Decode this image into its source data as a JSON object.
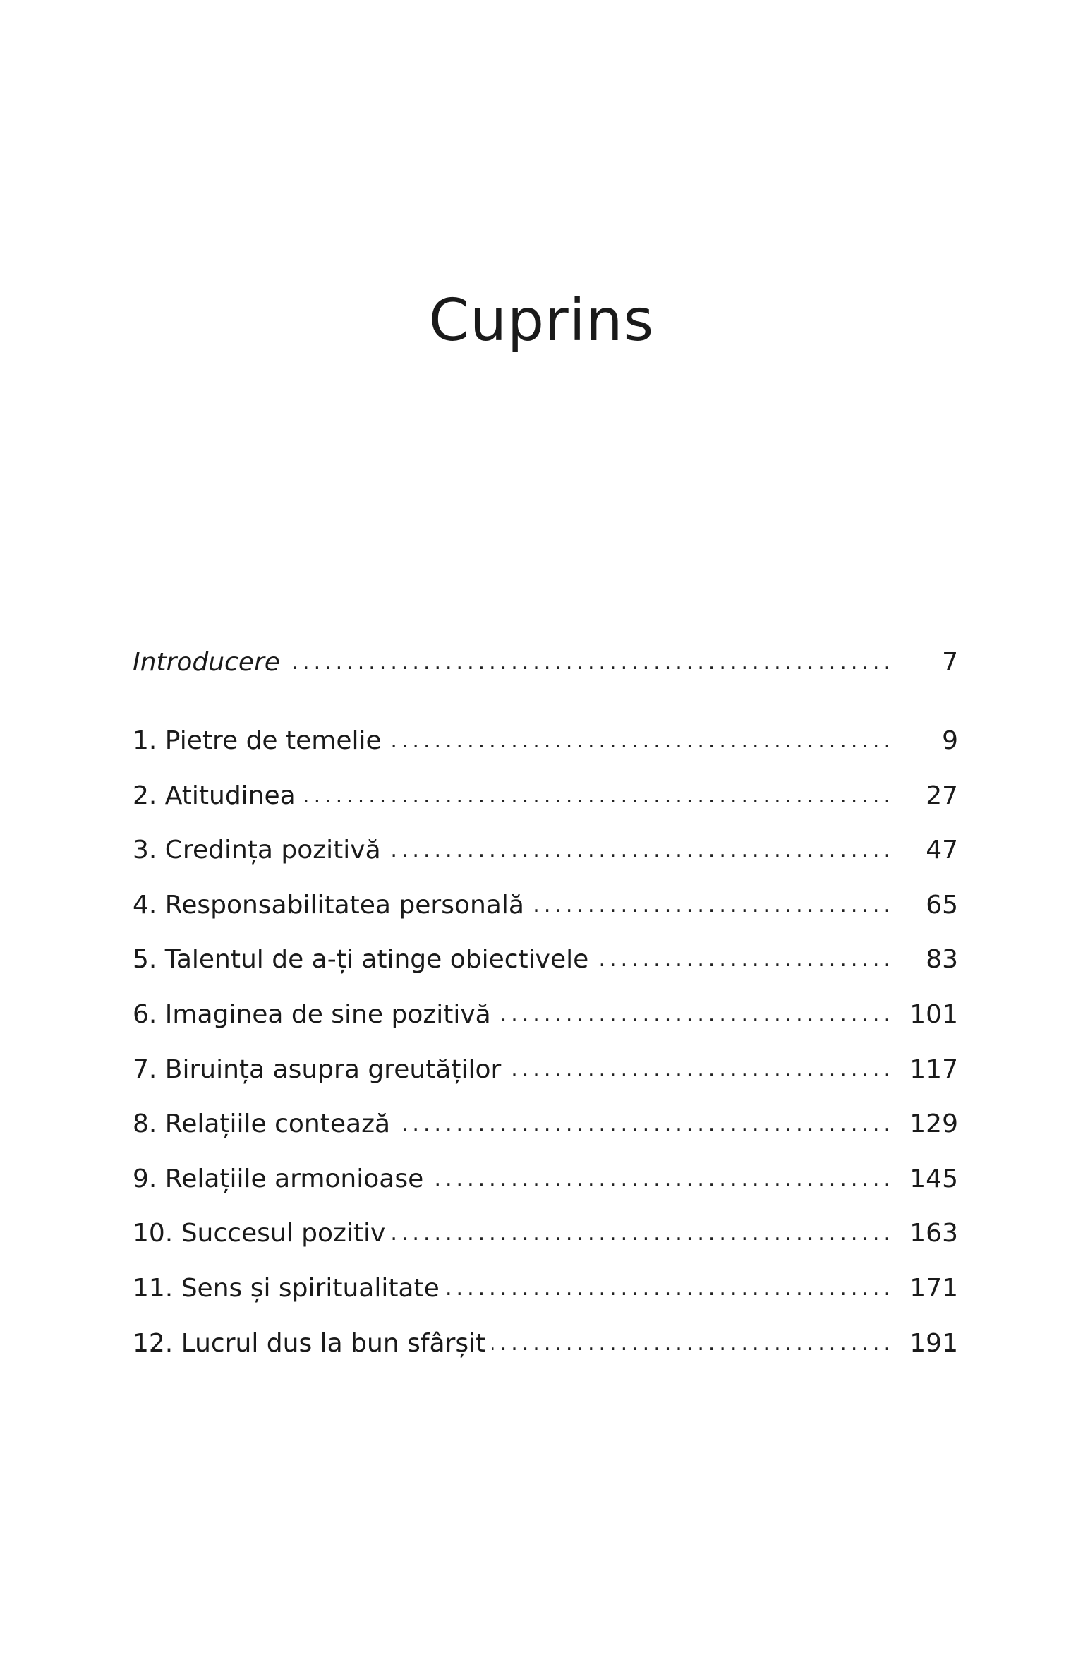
{
  "title": "Cuprins",
  "entries": [
    {
      "label": "Introducere",
      "page": "7",
      "italic": true
    },
    {
      "label": "1. Pietre de temelie",
      "page": "9"
    },
    {
      "label": "2. Atitudinea",
      "page": "27"
    },
    {
      "label": "3. Credința pozitivă",
      "page": "47"
    },
    {
      "label": "4. Responsabilitatea personală",
      "page": "65"
    },
    {
      "label": "5. Talentul de a-ți atinge obiectivele",
      "page": "83"
    },
    {
      "label": "6. Imaginea de sine pozitivă",
      "page": "101"
    },
    {
      "label": "7. Biruința asupra greutăților",
      "page": "117"
    },
    {
      "label": "8. Relațiile contează",
      "page": "129"
    },
    {
      "label": "9. Relațiile armonioase",
      "page": "145"
    },
    {
      "label": "10. Succesul pozitiv",
      "page": "163"
    },
    {
      "label": "11. Sens și spiritualitate",
      "page": "171"
    },
    {
      "label": "12. Lucrul dus la bun sfârșit",
      "page": "191"
    }
  ]
}
